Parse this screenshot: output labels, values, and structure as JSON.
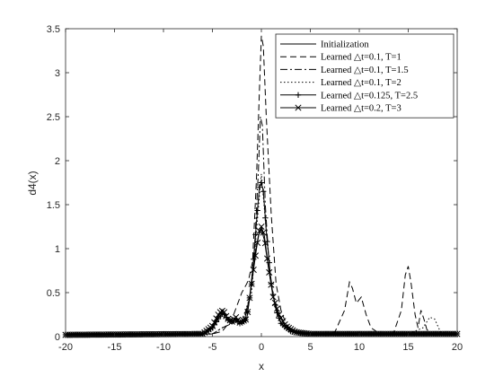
{
  "chart_data": {
    "type": "line",
    "xlabel": "x",
    "ylabel": "d4(x)",
    "xlim": [
      -20,
      20
    ],
    "ylim": [
      0,
      3.5
    ],
    "xticks": [
      -20,
      -15,
      -10,
      -5,
      0,
      5,
      10,
      15,
      20
    ],
    "xtick_labels": [
      "-20",
      "-15",
      "-10",
      "-5",
      "0",
      "5",
      "10",
      "15",
      "20"
    ],
    "yticks": [
      0,
      0.5,
      1,
      1.5,
      2,
      2.5,
      3,
      3.5
    ],
    "ytick_labels": [
      "0",
      "0.5",
      "1",
      "1.5",
      "2",
      "2.5",
      "3",
      "3.5"
    ],
    "grid": false,
    "legend_position": "top-right",
    "series": [
      {
        "name": "Initialization",
        "style": "solid",
        "marker": "none",
        "x": [
          -20,
          -6,
          -5,
          -4.3,
          -3.9,
          -3.5,
          -3,
          -2.6,
          -2.2,
          -1.8,
          -1.2,
          -0.8,
          -0.3,
          0,
          0.3,
          0.7,
          1.2,
          1.8,
          2.5,
          3.5,
          5,
          20
        ],
        "y": [
          0.02,
          0.03,
          0.1,
          0.25,
          0.29,
          0.2,
          0.17,
          0.2,
          0.15,
          0.15,
          0.45,
          0.85,
          1.15,
          1.22,
          1.1,
          0.8,
          0.45,
          0.25,
          0.12,
          0.05,
          0.03,
          0.03
        ]
      },
      {
        "name": "Learned △t=0.1, T=1",
        "style": "dashed",
        "marker": "none",
        "x": [
          -20,
          -5,
          -4,
          -3,
          -2,
          -1.5,
          -1.3,
          -0.9,
          -0.5,
          -0.2,
          0,
          0.2,
          0.5,
          1,
          1.5,
          2,
          2.5,
          3,
          4,
          6,
          7.5,
          8.5,
          9,
          9.3,
          9.7,
          10.2,
          10.7,
          11.2,
          12,
          13.5,
          14.3,
          14.7,
          15,
          15.3,
          15.7,
          16,
          16.3,
          16.6,
          16.9,
          17.3,
          18,
          20
        ],
        "y": [
          0.02,
          0.03,
          0.06,
          0.2,
          0.5,
          0.6,
          0.65,
          0.85,
          1.8,
          2.8,
          3.42,
          3.3,
          2.5,
          1.4,
          0.6,
          0.3,
          0.15,
          0.08,
          0.04,
          0.03,
          0.05,
          0.3,
          0.62,
          0.55,
          0.38,
          0.45,
          0.25,
          0.1,
          0.04,
          0.04,
          0.3,
          0.7,
          0.8,
          0.6,
          0.25,
          0.1,
          0.3,
          0.2,
          0.08,
          0.04,
          0.03,
          0.03
        ]
      },
      {
        "name": "Learned △t=0.1, T=1.5",
        "style": "dashdot",
        "marker": "none",
        "x": [
          -20,
          -5,
          -4,
          -3,
          -2,
          -1.2,
          -0.7,
          -0.3,
          -0.1,
          0.1,
          0.4,
          0.8,
          1.3,
          2,
          3,
          5,
          20
        ],
        "y": [
          0.02,
          0.03,
          0.1,
          0.15,
          0.18,
          0.4,
          1.0,
          1.9,
          2.5,
          2.4,
          1.5,
          0.8,
          0.4,
          0.15,
          0.06,
          0.03,
          0.03
        ]
      },
      {
        "name": "Learned △t=0.1, T=2",
        "style": "dotted",
        "marker": "none",
        "x": [
          -20,
          -5,
          -4,
          -3,
          -2,
          -1,
          -0.5,
          0,
          0.5,
          1,
          1.5,
          2,
          3,
          5,
          15,
          16.5,
          17.2,
          17.7,
          18.3,
          20
        ],
        "y": [
          0.02,
          0.03,
          0.1,
          0.15,
          0.18,
          0.5,
          1.2,
          1.85,
          1.2,
          0.6,
          0.3,
          0.15,
          0.06,
          0.03,
          0.03,
          0.1,
          0.22,
          0.2,
          0.05,
          0.03
        ]
      },
      {
        "name": "Learned △t=0.125, T=2.5",
        "style": "solid",
        "marker": "plus",
        "x": [
          -20,
          -6,
          -5,
          -4.3,
          -3.9,
          -3.5,
          -3,
          -2.6,
          -2.2,
          -1.5,
          -1,
          -0.5,
          -0.2,
          0,
          0.2,
          0.5,
          1,
          1.5,
          2,
          3,
          4,
          5,
          20
        ],
        "y": [
          0.02,
          0.03,
          0.1,
          0.22,
          0.27,
          0.2,
          0.17,
          0.2,
          0.15,
          0.2,
          0.6,
          1.3,
          1.7,
          1.75,
          1.65,
          1.2,
          0.6,
          0.3,
          0.15,
          0.06,
          0.04,
          0.03,
          0.03
        ]
      },
      {
        "name": "Learned △t=0.2, T=3",
        "style": "solid",
        "marker": "x",
        "x": [
          -20,
          -6,
          -5,
          -4.3,
          -3.9,
          -3.5,
          -3,
          -2.6,
          -2.2,
          -1.5,
          -1,
          -0.5,
          -0.2,
          0,
          0.3,
          0.7,
          1.2,
          1.8,
          2.5,
          3.5,
          5,
          20
        ],
        "y": [
          0.02,
          0.03,
          0.12,
          0.27,
          0.3,
          0.21,
          0.17,
          0.22,
          0.16,
          0.2,
          0.6,
          1.0,
          1.2,
          1.25,
          1.15,
          0.8,
          0.45,
          0.25,
          0.12,
          0.05,
          0.03,
          0.03
        ]
      }
    ]
  }
}
